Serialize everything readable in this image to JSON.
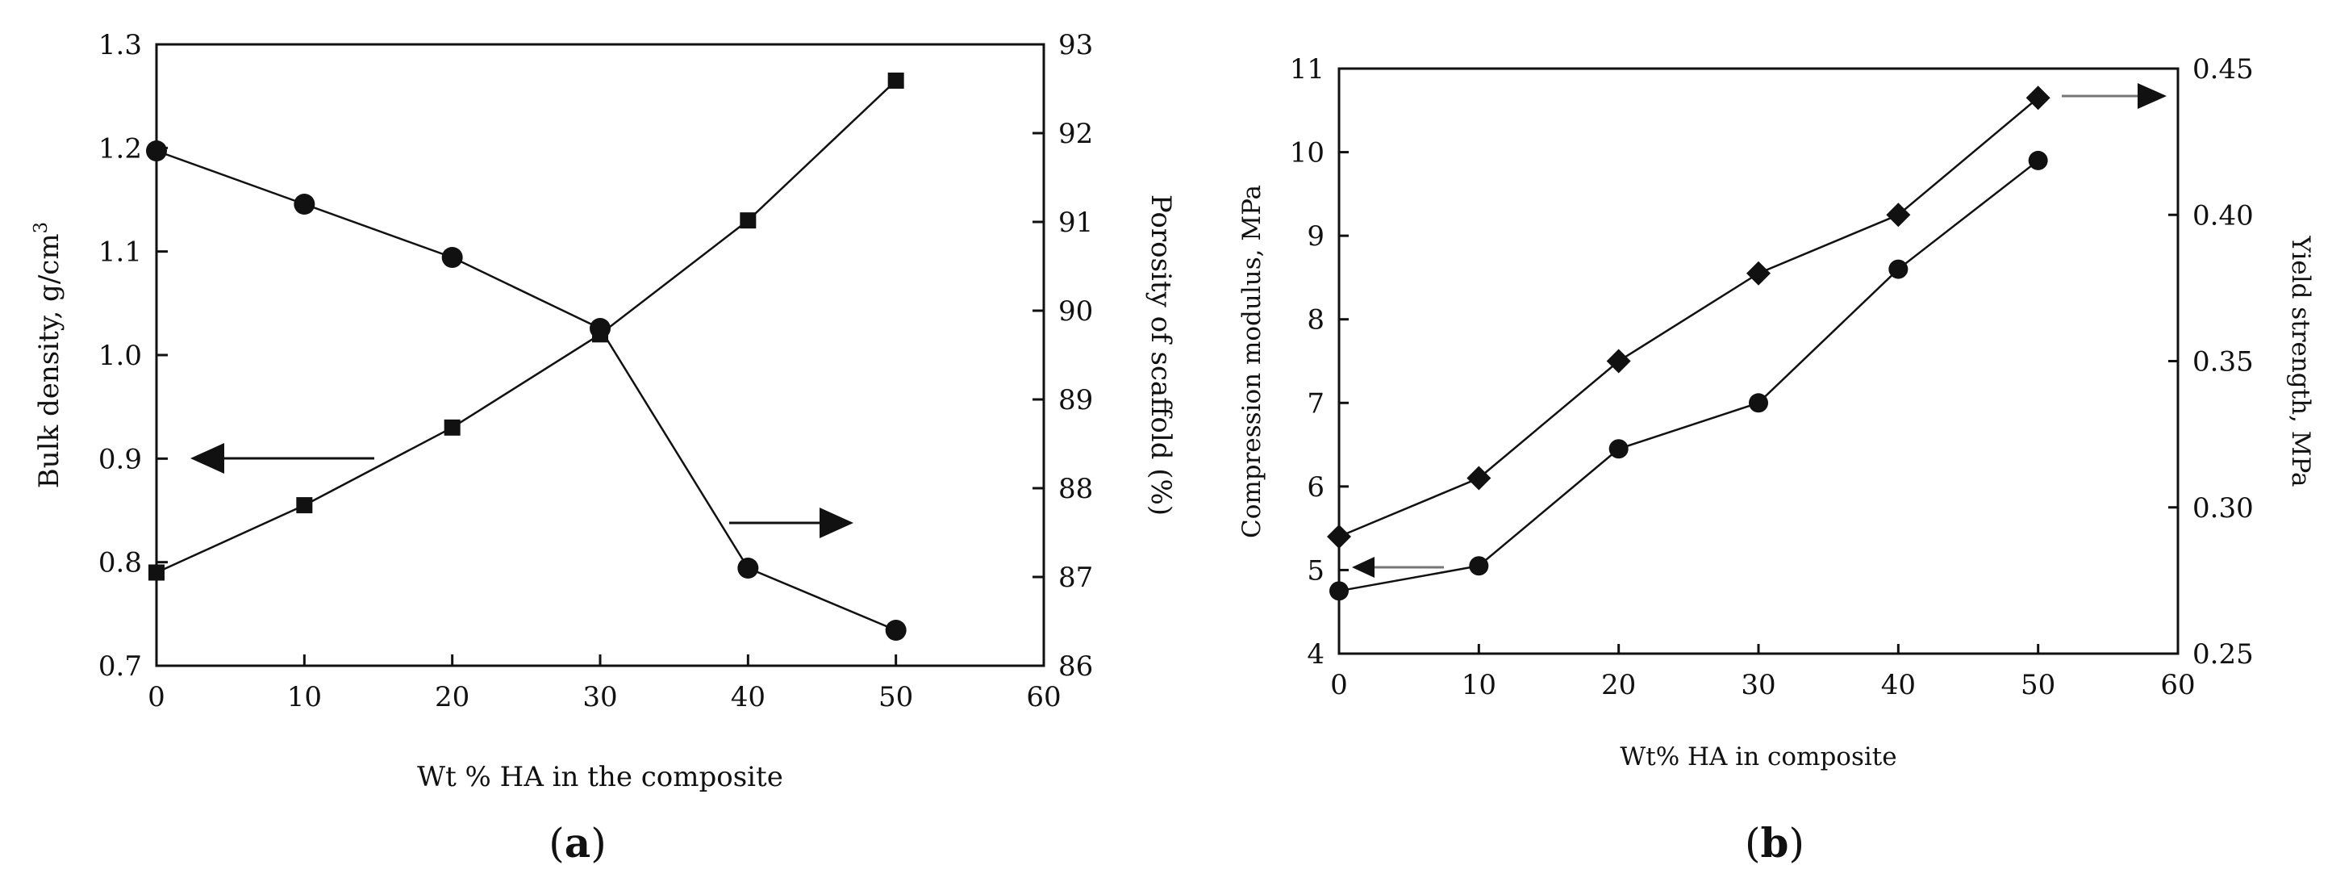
{
  "chart_data": [
    {
      "type": "line",
      "panel": "a",
      "caption_open": "(",
      "caption_letter": "a",
      "caption_close": ")",
      "xlabel": "Wt % HA in the composite",
      "ylabel": "Bulk density, g/cm",
      "ylabel_sup": "3",
      "y2label": "Porosity of scaffold (%)",
      "xlim": [
        0,
        60
      ],
      "ylim": [
        0.7,
        1.3
      ],
      "y2lim": [
        86,
        93
      ],
      "xticks": [
        "0",
        "10",
        "20",
        "30",
        "40",
        "50",
        "60"
      ],
      "yticks": [
        "0.7",
        "0.8",
        "0.9",
        "1.0",
        "1.1",
        "1.2",
        "1.3"
      ],
      "y2ticks": [
        "86",
        "87",
        "88",
        "89",
        "90",
        "91",
        "92",
        "93"
      ],
      "series": [
        {
          "name": "Bulk density",
          "axis": "left",
          "marker": "square",
          "x": [
            0,
            10,
            20,
            30,
            40,
            50
          ],
          "values": [
            0.79,
            0.855,
            0.93,
            1.02,
            1.13,
            1.265
          ]
        },
        {
          "name": "Porosity",
          "axis": "right",
          "marker": "circle",
          "x": [
            0,
            10,
            20,
            30,
            40,
            50
          ],
          "values": [
            91.8,
            91.2,
            90.6,
            89.8,
            87.1,
            86.4
          ]
        }
      ]
    },
    {
      "type": "line",
      "panel": "b",
      "caption_open": "(",
      "caption_letter": "b",
      "caption_close": ")",
      "xlabel": "Wt% HA in composite",
      "ylabel": "Compression modulus, MPa",
      "y2label": "Yield strength, MPa",
      "xlim": [
        0,
        60
      ],
      "ylim": [
        4,
        11
      ],
      "y2lim": [
        0.25,
        0.45
      ],
      "xticks": [
        "0",
        "10",
        "20",
        "30",
        "40",
        "50",
        "60"
      ],
      "yticks": [
        "4",
        "5",
        "6",
        "7",
        "8",
        "9",
        "10",
        "11"
      ],
      "y2ticks": [
        "0.25",
        "0.30",
        "0.35",
        "0.40",
        "0.45"
      ],
      "series": [
        {
          "name": "Compression modulus",
          "axis": "left",
          "marker": "circle",
          "x": [
            0,
            10,
            20,
            30,
            40,
            50
          ],
          "values": [
            4.75,
            5.05,
            6.45,
            7.0,
            8.6,
            9.9
          ]
        },
        {
          "name": "Yield strength",
          "axis": "right",
          "marker": "diamond",
          "x": [
            0,
            10,
            20,
            30,
            40,
            50
          ],
          "values": [
            0.29,
            0.31,
            0.35,
            0.38,
            0.4,
            0.44
          ]
        }
      ]
    }
  ]
}
